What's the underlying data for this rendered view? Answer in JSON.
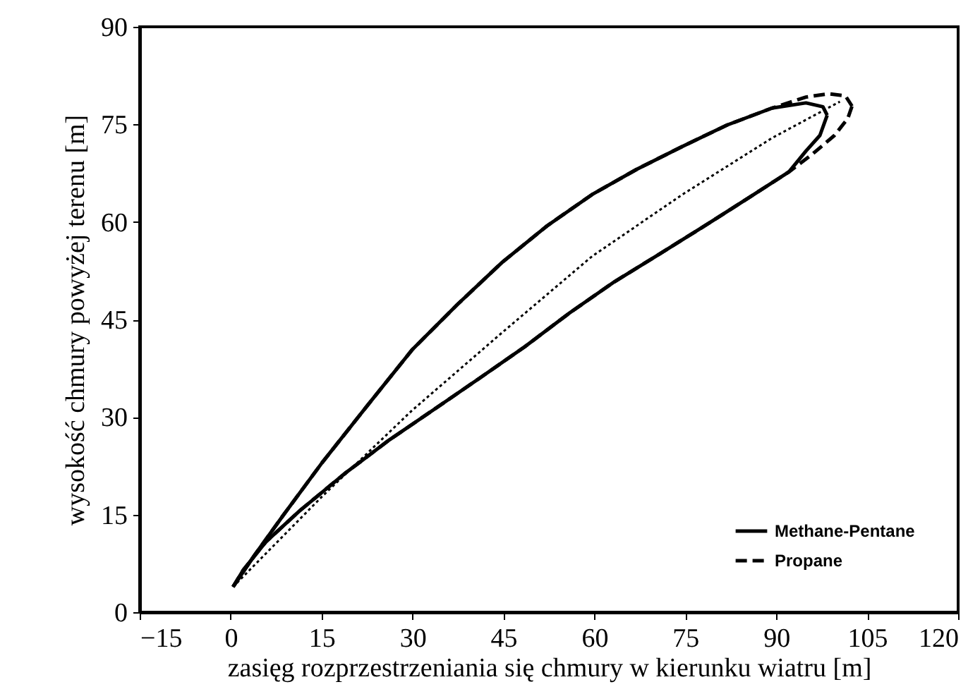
{
  "chart_data": {
    "type": "line",
    "xlabel": "zasięg rozprzestrzeniania się chmury w kierunku wiatru [m]",
    "ylabel": "wysokość chmury powyżej terenu [m]",
    "xlim": [
      -15,
      120
    ],
    "ylim": [
      0,
      90
    ],
    "xticks": [
      -15,
      0,
      15,
      30,
      45,
      60,
      75,
      90,
      105,
      120
    ],
    "yticks": [
      0,
      15,
      30,
      45,
      60,
      75,
      90
    ],
    "grid": false,
    "legend": "bottom right",
    "marker": "none",
    "series": [
      {
        "name": "Methane-Pentane",
        "color": "#000000",
        "line_style": "solid",
        "x": [
          0.4,
          3.9,
          8.6,
          15.1,
          22.5,
          29.9,
          37.4,
          44.8,
          52.2,
          59.6,
          67,
          74.5,
          81.9,
          89.3,
          94.9,
          97.7,
          98.4
        ],
        "values": [
          3.9,
          8.7,
          14.8,
          23,
          31.7,
          40.3,
          47.3,
          53.8,
          59.4,
          64.2,
          68.1,
          71.6,
          74.9,
          77.5,
          78.3,
          77.7,
          76.4
        ]
      },
      {
        "color": "#000000",
        "line_style": "solid",
        "x": [
          0.4,
          2.1,
          5.8,
          11.4,
          18.8,
          26.2,
          33.6,
          41.1,
          48.5,
          55.9,
          63.3,
          70.8,
          78.2,
          85.6,
          92.1,
          94.9,
          97.2,
          98.4
        ],
        "values": [
          3.9,
          6.5,
          10.8,
          15.6,
          21.3,
          26.5,
          31.2,
          36,
          40.8,
          46,
          50.8,
          55.1,
          59.4,
          63.8,
          67.7,
          70.9,
          73.3,
          76.4
        ]
      },
      {
        "name": "Propane",
        "color": "#000000",
        "line_style": "dashed",
        "x": [
          0.4,
          3.9,
          8.6,
          15.1,
          22.5,
          29.9,
          37.4,
          44.8,
          52.2,
          59.6,
          67,
          74.5,
          81.9,
          89.3,
          94.9,
          98.6,
          101.4,
          102.5
        ],
        "values": [
          3.9,
          8.7,
          14.8,
          23,
          31.7,
          40.3,
          47.3,
          53.8,
          59.4,
          64.2,
          68.1,
          71.6,
          74.9,
          77.5,
          79.2,
          79.7,
          79.4,
          77.8
        ]
      },
      {
        "color": "#000000",
        "line_style": "dashed",
        "x": [
          0.4,
          2.1,
          5.8,
          11.4,
          18.8,
          26.2,
          33.6,
          41.1,
          48.5,
          55.9,
          63.3,
          70.8,
          78.2,
          85.6,
          92.1,
          95.8,
          99.6,
          101.8,
          102.5
        ],
        "values": [
          3.9,
          6.5,
          10.8,
          15.6,
          21.3,
          26.5,
          31.2,
          36,
          40.8,
          46,
          50.8,
          55.1,
          59.4,
          63.8,
          67.7,
          70.3,
          73.3,
          75.9,
          77.8
        ]
      },
      {
        "color": "#000000",
        "line_style": "dotted",
        "x": [
          0.4,
          15.1,
          29.9,
          44.8,
          59.6,
          74.5,
          89.3,
          100.5
        ],
        "values": [
          3.9,
          17.8,
          31,
          43,
          54.7,
          64.2,
          72.9,
          78.5
        ]
      }
    ]
  }
}
